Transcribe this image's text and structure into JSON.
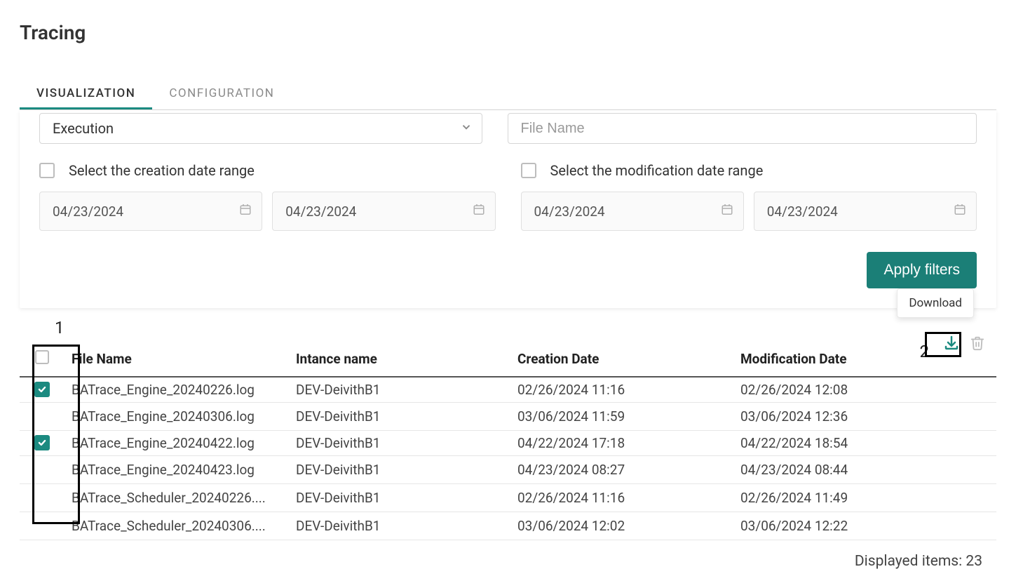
{
  "page_title": "Tracing",
  "tabs": {
    "visualization": "VISUALIZATION",
    "configuration": "CONFIGURATION"
  },
  "filters": {
    "type_select_value": "Execution",
    "file_name_placeholder": "File Name",
    "creation_label": "Select the creation date range",
    "modification_label": "Select the modification date range",
    "creation_from": "04/23/2024",
    "creation_to": "04/23/2024",
    "modification_from": "04/23/2024",
    "modification_to": "04/23/2024",
    "apply_label": "Apply filters"
  },
  "tooltip_download": "Download",
  "annotations": {
    "one": "1",
    "two": "2"
  },
  "table": {
    "headers": {
      "file": "File Name",
      "instance": "Intance name",
      "creation": "Creation Date",
      "modification": "Modification Date"
    },
    "rows": [
      {
        "checked": true,
        "file": "BATrace_Engine_20240226.log",
        "instance": "DEV-DeivithB1",
        "creation": "02/26/2024 11:16",
        "modification": "02/26/2024 12:08"
      },
      {
        "checked": false,
        "file": "BATrace_Engine_20240306.log",
        "instance": "DEV-DeivithB1",
        "creation": "03/06/2024 11:59",
        "modification": "03/06/2024 12:36"
      },
      {
        "checked": true,
        "file": "BATrace_Engine_20240422.log",
        "instance": "DEV-DeivithB1",
        "creation": "04/22/2024 17:18",
        "modification": "04/22/2024 18:54"
      },
      {
        "checked": false,
        "file": "BATrace_Engine_20240423.log",
        "instance": "DEV-DeivithB1",
        "creation": "04/23/2024 08:27",
        "modification": "04/23/2024 08:44"
      },
      {
        "checked": false,
        "file": "BATrace_Scheduler_20240226....",
        "instance": "DEV-DeivithB1",
        "creation": "02/26/2024 11:16",
        "modification": "02/26/2024 11:49"
      },
      {
        "checked": false,
        "file": "BATrace_Scheduler_20240306....",
        "instance": "DEV-DeivithB1",
        "creation": "03/06/2024 12:02",
        "modification": "03/06/2024 12:22"
      }
    ]
  },
  "footer": {
    "displayed_prefix": "Displayed items: ",
    "displayed_count": "23"
  },
  "colors": {
    "accent": "#1b8a80",
    "button": "#1b7f77"
  }
}
